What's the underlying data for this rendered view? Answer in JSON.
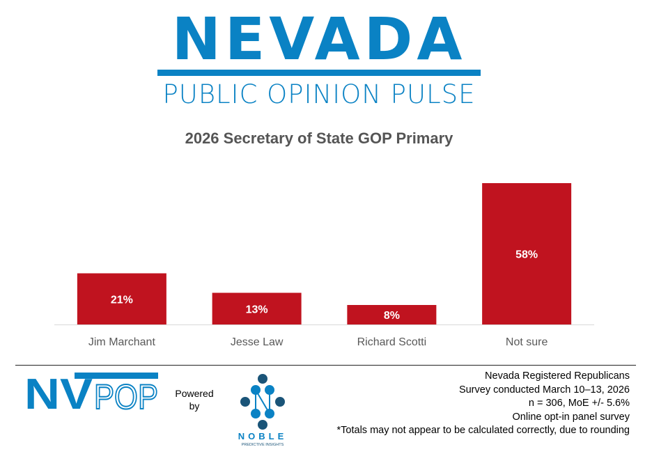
{
  "header": {
    "logo_title": "Nevada",
    "logo_subtitle": "PUBLIC OPINION PULSE"
  },
  "chart_data": {
    "type": "bar",
    "title": "2026 Secretary of State GOP Primary",
    "categories": [
      "Jim Marchant",
      "Jesse Law",
      "Richard Scotti",
      "Not sure"
    ],
    "values": [
      21,
      13,
      8,
      58
    ],
    "data_labels": [
      "21%",
      "13%",
      "8%",
      "58%"
    ],
    "unit": "%",
    "bar_color": "#c0131f",
    "grid": false,
    "ylim": [
      0,
      58
    ]
  },
  "footer": {
    "brand_logo": "NVPOP",
    "powered_by": [
      "Powered",
      "by"
    ],
    "partner_logo": "NOBLE",
    "partner_tagline": "PREDICTIVE INSIGHTS",
    "notes": [
      "Nevada Registered Republicans",
      "Survey conducted March 10–13, 2026",
      "n = 306, MoE +/- 5.6%",
      "Online opt-in panel survey",
      "*Totals may not appear to be calculated correctly, due to rounding"
    ]
  },
  "colors": {
    "brand_blue": "#0a82c4",
    "noble_dark": "#1a5478",
    "bar": "#c0131f"
  }
}
